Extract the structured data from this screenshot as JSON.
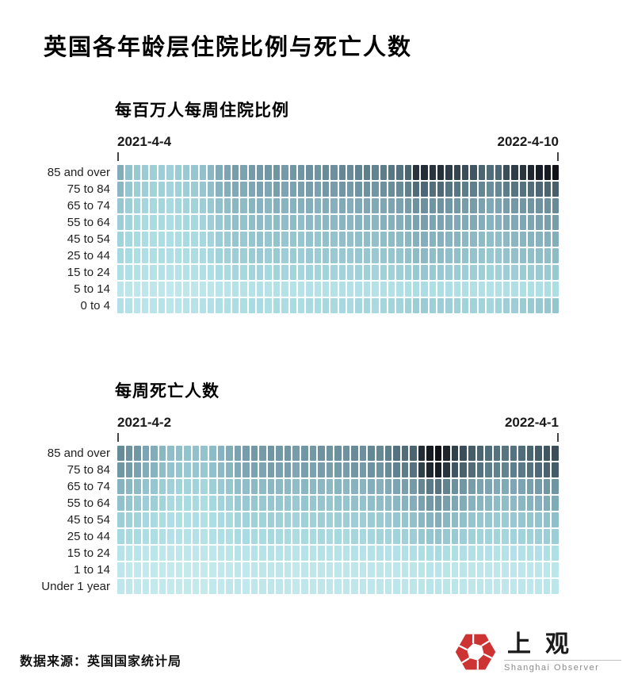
{
  "title": "英国各年龄层住院比例与死亡人数",
  "footer": {
    "source": "数据来源：英国国家统计局"
  },
  "logo": {
    "cn": "上观",
    "en": "Shanghai Observer",
    "mark_color": "#cd3333"
  },
  "color_scale": {
    "note": "sequential scale, light cyan = low, black = high",
    "stops": [
      [
        0,
        "#cdeef1"
      ],
      [
        20,
        "#abdde3"
      ],
      [
        35,
        "#93c3cd"
      ],
      [
        50,
        "#7da4b2"
      ],
      [
        65,
        "#60828f"
      ],
      [
        80,
        "#435a66"
      ],
      [
        90,
        "#25303a"
      ],
      [
        100,
        "#101218"
      ]
    ]
  },
  "chart_data": [
    {
      "type": "heatmap",
      "title": "每百万人每周住院比例",
      "x_start_label": "2021-4-4",
      "x_end_label": "2022-4-10",
      "x_unit": "week",
      "legend_position": "none",
      "grid": false,
      "rows": [
        "85 and over",
        "75 to 84",
        "65 to 74",
        "55 to 64",
        "45 to 54",
        "25 to 44",
        "15 to 24",
        "5 to 14",
        "0 to 4"
      ],
      "value_scale": "relative intensity 0-100 (darker cell = higher weekly hospitalisation rate per million)",
      "values": [
        [
          46,
          36,
          32,
          30,
          28,
          29,
          27,
          30,
          31,
          33,
          36,
          41,
          47,
          50,
          53,
          51,
          54,
          55,
          56,
          57,
          54,
          56,
          57,
          59,
          57,
          61,
          59,
          63,
          61,
          64,
          66,
          64,
          67,
          69,
          71,
          76,
          89,
          91,
          89,
          90,
          87,
          85,
          83,
          81,
          76,
          73,
          75,
          83,
          87,
          89,
          93,
          96,
          97,
          100
        ],
        [
          41,
          33,
          29,
          28,
          26,
          27,
          25,
          27,
          29,
          30,
          33,
          37,
          43,
          45,
          48,
          46,
          49,
          51,
          49,
          52,
          50,
          51,
          52,
          53,
          51,
          55,
          53,
          56,
          54,
          57,
          58,
          56,
          59,
          60,
          61,
          65,
          73,
          75,
          72,
          74,
          70,
          69,
          67,
          66,
          63,
          60,
          62,
          67,
          70,
          71,
          73,
          75,
          76,
          78
        ],
        [
          33,
          28,
          25,
          24,
          23,
          24,
          22,
          24,
          25,
          26,
          28,
          31,
          36,
          38,
          41,
          39,
          42,
          43,
          41,
          44,
          42,
          43,
          44,
          45,
          43,
          46,
          44,
          47,
          45,
          48,
          49,
          47,
          49,
          50,
          51,
          53,
          58,
          59,
          57,
          58,
          56,
          55,
          53,
          53,
          51,
          48,
          50,
          53,
          55,
          56,
          57,
          58,
          59,
          61
        ],
        [
          29,
          25,
          23,
          22,
          21,
          22,
          20,
          22,
          23,
          23,
          25,
          28,
          32,
          34,
          37,
          35,
          38,
          39,
          37,
          39,
          38,
          39,
          38,
          40,
          39,
          41,
          40,
          42,
          41,
          43,
          43,
          41,
          44,
          44,
          45,
          47,
          51,
          52,
          50,
          51,
          49,
          48,
          47,
          47,
          45,
          43,
          44,
          47,
          48,
          49,
          50,
          51,
          52,
          53
        ],
        [
          26,
          23,
          21,
          20,
          19,
          20,
          18,
          20,
          21,
          21,
          23,
          25,
          29,
          30,
          33,
          31,
          34,
          35,
          33,
          35,
          33,
          34,
          33,
          35,
          34,
          36,
          35,
          37,
          36,
          37,
          38,
          36,
          38,
          39,
          39,
          41,
          44,
          45,
          43,
          44,
          42,
          42,
          40,
          40,
          39,
          37,
          38,
          40,
          41,
          42,
          43,
          43,
          44,
          45
        ],
        [
          23,
          21,
          19,
          18,
          18,
          19,
          17,
          18,
          19,
          20,
          21,
          23,
          26,
          27,
          29,
          28,
          30,
          31,
          29,
          31,
          29,
          30,
          29,
          31,
          30,
          32,
          31,
          32,
          31,
          33,
          33,
          31,
          33,
          34,
          34,
          36,
          39,
          40,
          38,
          39,
          37,
          37,
          35,
          35,
          34,
          32,
          33,
          35,
          36,
          37,
          37,
          38,
          38,
          39
        ],
        [
          19,
          17,
          15,
          14,
          14,
          15,
          13,
          14,
          15,
          15,
          17,
          18,
          21,
          22,
          24,
          23,
          25,
          25,
          23,
          25,
          24,
          25,
          24,
          26,
          25,
          26,
          25,
          26,
          25,
          27,
          27,
          25,
          27,
          27,
          28,
          29,
          32,
          33,
          31,
          32,
          30,
          30,
          29,
          28,
          28,
          26,
          27,
          29,
          29,
          30,
          30,
          31,
          31,
          32
        ],
        [
          11,
          10,
          8,
          8,
          8,
          9,
          7,
          8,
          9,
          8,
          10,
          10,
          12,
          12,
          14,
          13,
          14,
          15,
          13,
          15,
          14,
          14,
          13,
          15,
          14,
          15,
          14,
          16,
          15,
          16,
          16,
          14,
          16,
          16,
          17,
          18,
          19,
          20,
          18,
          19,
          18,
          17,
          17,
          16,
          16,
          15,
          16,
          17,
          17,
          18,
          18,
          18,
          19,
          19
        ],
        [
          16,
          14,
          12,
          12,
          12,
          13,
          11,
          12,
          13,
          13,
          15,
          16,
          18,
          18,
          20,
          19,
          21,
          21,
          19,
          22,
          20,
          21,
          20,
          22,
          21,
          23,
          22,
          23,
          22,
          24,
          24,
          22,
          24,
          25,
          25,
          27,
          29,
          30,
          28,
          29,
          28,
          27,
          26,
          26,
          26,
          24,
          26,
          28,
          29,
          30,
          31,
          32,
          33,
          34
        ]
      ]
    },
    {
      "type": "heatmap",
      "title": "每周死亡人数",
      "x_start_label": "2021-4-2",
      "x_end_label": "2022-4-1",
      "x_unit": "week",
      "legend_position": "none",
      "grid": false,
      "rows": [
        "85 and over",
        "75 to 84",
        "65 to 74",
        "55 to 64",
        "45 to 54",
        "25 to 44",
        "15 to 24",
        "1 to 14",
        "Under 1 year"
      ],
      "value_scale": "relative intensity 0-100 (darker cell = more weekly deaths)",
      "values": [
        [
          61,
          58,
          56,
          50,
          46,
          41,
          38,
          37,
          35,
          36,
          35,
          39,
          43,
          46,
          51,
          53,
          55,
          54,
          57,
          55,
          56,
          53,
          56,
          55,
          58,
          57,
          59,
          58,
          61,
          59,
          63,
          62,
          66,
          71,
          73,
          76,
          91,
          97,
          100,
          94,
          86,
          83,
          79,
          76,
          73,
          71,
          70,
          71,
          73,
          76,
          79,
          81,
          83
        ],
        [
          56,
          54,
          51,
          46,
          43,
          38,
          35,
          34,
          32,
          33,
          32,
          36,
          40,
          42,
          47,
          49,
          51,
          50,
          53,
          51,
          52,
          49,
          52,
          51,
          53,
          52,
          54,
          53,
          56,
          54,
          58,
          57,
          61,
          65,
          67,
          71,
          86,
          93,
          96,
          89,
          81,
          77,
          73,
          71,
          67,
          65,
          64,
          66,
          68,
          71,
          74,
          77,
          79
        ],
        [
          43,
          41,
          39,
          35,
          33,
          29,
          27,
          26,
          25,
          26,
          24,
          28,
          31,
          33,
          37,
          38,
          40,
          39,
          41,
          40,
          40,
          38,
          41,
          40,
          41,
          40,
          42,
          41,
          43,
          42,
          45,
          44,
          47,
          50,
          52,
          54,
          63,
          68,
          70,
          64,
          59,
          56,
          53,
          51,
          50,
          48,
          47,
          49,
          50,
          52,
          54,
          56,
          57
        ],
        [
          36,
          34,
          32,
          29,
          28,
          25,
          22,
          22,
          21,
          22,
          20,
          23,
          26,
          27,
          31,
          32,
          33,
          32,
          34,
          33,
          33,
          31,
          34,
          33,
          34,
          33,
          35,
          34,
          36,
          35,
          37,
          38,
          39,
          41,
          43,
          45,
          51,
          55,
          57,
          52,
          49,
          46,
          43,
          42,
          41,
          39,
          38,
          40,
          41,
          43,
          44,
          46,
          47
        ],
        [
          29,
          27,
          26,
          23,
          22,
          20,
          18,
          18,
          17,
          18,
          16,
          19,
          21,
          22,
          25,
          26,
          27,
          26,
          28,
          27,
          27,
          25,
          27,
          27,
          28,
          27,
          28,
          28,
          29,
          28,
          30,
          30,
          31,
          33,
          34,
          36,
          41,
          43,
          45,
          41,
          39,
          36,
          34,
          33,
          33,
          31,
          30,
          32,
          33,
          34,
          35,
          36,
          37
        ],
        [
          23,
          22,
          21,
          19,
          19,
          17,
          15,
          15,
          14,
          15,
          14,
          16,
          18,
          18,
          21,
          21,
          22,
          21,
          23,
          22,
          22,
          20,
          22,
          22,
          23,
          22,
          23,
          22,
          24,
          23,
          24,
          25,
          25,
          26,
          27,
          29,
          32,
          34,
          35,
          32,
          31,
          29,
          27,
          26,
          26,
          25,
          24,
          26,
          26,
          27,
          28,
          29,
          29
        ],
        [
          13,
          12,
          12,
          10,
          11,
          9,
          9,
          9,
          8,
          9,
          8,
          9,
          11,
          11,
          13,
          12,
          13,
          13,
          14,
          13,
          13,
          12,
          13,
          13,
          14,
          13,
          13,
          13,
          14,
          13,
          14,
          15,
          14,
          15,
          16,
          17,
          19,
          20,
          21,
          19,
          18,
          17,
          16,
          15,
          15,
          14,
          14,
          15,
          15,
          16,
          16,
          17,
          17
        ],
        [
          8,
          7,
          7,
          6,
          7,
          6,
          5,
          6,
          5,
          6,
          5,
          6,
          7,
          7,
          8,
          7,
          8,
          8,
          9,
          8,
          8,
          7,
          8,
          8,
          9,
          8,
          8,
          8,
          9,
          8,
          9,
          9,
          9,
          9,
          10,
          10,
          11,
          12,
          12,
          11,
          10,
          10,
          9,
          9,
          9,
          8,
          8,
          9,
          9,
          9,
          10,
          10,
          10
        ],
        [
          9,
          8,
          7,
          7,
          6,
          7,
          5,
          6,
          6,
          6,
          5,
          7,
          7,
          8,
          8,
          7,
          9,
          8,
          9,
          8,
          8,
          7,
          9,
          8,
          9,
          8,
          9,
          8,
          9,
          8,
          9,
          10,
          9,
          10,
          10,
          10,
          11,
          12,
          12,
          11,
          11,
          10,
          9,
          10,
          9,
          8,
          9,
          9,
          10,
          9,
          10,
          11,
          10
        ]
      ]
    }
  ]
}
